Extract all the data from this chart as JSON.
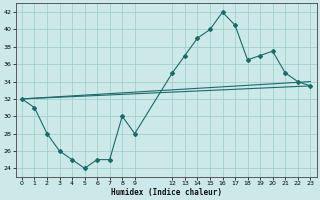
{
  "xlabel": "Humidex (Indice chaleur)",
  "bg_color": "#cce8e8",
  "grid_color": "#99cccc",
  "line_color": "#1a6b6b",
  "x_ticks": [
    0,
    1,
    2,
    3,
    4,
    5,
    6,
    7,
    8,
    9,
    12,
    13,
    14,
    15,
    16,
    17,
    18,
    19,
    20,
    21,
    22,
    23
  ],
  "xlim": [
    -0.5,
    23.5
  ],
  "ylim": [
    23,
    43
  ],
  "y_ticks": [
    24,
    26,
    28,
    30,
    32,
    34,
    36,
    38,
    40,
    42
  ],
  "series1_x": [
    0,
    1,
    2,
    3,
    4,
    5,
    6,
    7,
    8,
    9,
    12,
    13,
    14,
    15,
    16,
    17,
    18,
    19,
    20,
    21,
    22,
    23
  ],
  "series1_y": [
    32,
    31,
    28,
    26,
    25,
    24,
    25,
    25,
    30,
    28,
    35,
    37,
    39,
    40,
    42,
    40.5,
    36.5,
    37,
    37.5,
    35,
    34,
    33.5
  ],
  "series2_x": [
    0,
    23
  ],
  "series2_y": [
    32,
    34
  ],
  "series3_x": [
    0,
    23
  ],
  "series3_y": [
    32,
    33.5
  ],
  "figsize": [
    3.2,
    2.0
  ],
  "dpi": 100
}
